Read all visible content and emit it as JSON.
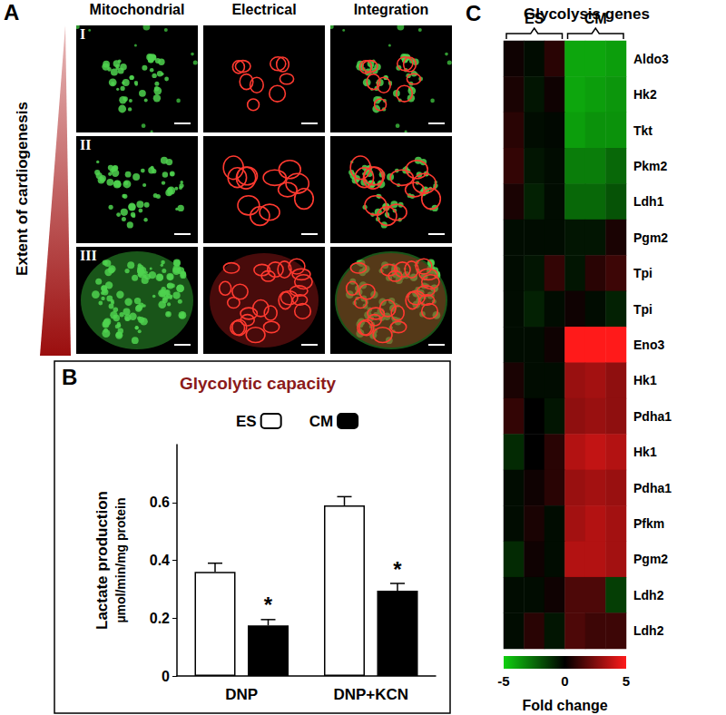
{
  "panel_a": {
    "label": "A",
    "columns": [
      "Mitochondrial",
      "Electrical",
      "Integration"
    ],
    "rows": [
      "I",
      "II",
      "III"
    ],
    "axis_label": "Extent of cardiogenesis"
  },
  "chart_data": [
    {
      "panel_label": "B",
      "type": "bar",
      "title": "Glycolytic capacity",
      "y_label": [
        "Lactate production",
        "µmol/min/mg protein"
      ],
      "categories": [
        "DNP",
        "DNP+KCN"
      ],
      "series": [
        {
          "name": "ES",
          "color": "#ffffff",
          "values": [
            0.36,
            0.59
          ],
          "errors": [
            0.03,
            0.03
          ]
        },
        {
          "name": "CM",
          "color": "#000000",
          "values": [
            0.175,
            0.295
          ],
          "errors": [
            0.02,
            0.025
          ]
        }
      ],
      "ylim": [
        0,
        0.8
      ],
      "yticks": [
        0,
        0.2,
        0.4,
        0.6
      ],
      "legend": "top",
      "annotations": [
        {
          "text": "*",
          "category": "DNP",
          "series": "CM"
        },
        {
          "text": "*",
          "category": "DNP+KCN",
          "series": "CM"
        }
      ]
    },
    {
      "panel_label": "C",
      "type": "heatmap",
      "title": "Glycolysis genes",
      "categories": [
        null,
        null,
        null,
        null,
        null,
        null
      ],
      "column_groups": [
        {
          "label": "ES",
          "columns": [
            0,
            1,
            2
          ]
        },
        {
          "label": "CM",
          "columns": [
            3,
            4,
            5
          ]
        }
      ],
      "rows": [
        "Aldo3",
        "Hk2",
        "Tkt",
        "Pkm2",
        "Ldh1",
        "Pgm2",
        "Tpi",
        "Tpi",
        "Eno3",
        "Hk1",
        "Pdha1",
        "Hk1",
        "Pdha1",
        "Pfkm",
        "Pgm2",
        "Ldh2",
        "Ldh2"
      ],
      "cells": [
        [
          0.3,
          -0.3,
          0.8,
          -4,
          -4,
          -3.8
        ],
        [
          0.5,
          -0.5,
          0.3,
          -4,
          -3.8,
          -3.6
        ],
        [
          0.8,
          -0.3,
          -0.2,
          -3.8,
          -3.5,
          -3.5
        ],
        [
          1,
          -0.5,
          -0.3,
          -3,
          -3,
          -2.5
        ],
        [
          0.5,
          -0.8,
          -0.3,
          -2.5,
          -2.5,
          -2
        ],
        [
          -0.3,
          -0.3,
          -0.3,
          -0.5,
          -0.5,
          0.5
        ],
        [
          -0.3,
          -0.5,
          1,
          -0.5,
          0.8,
          1.2
        ],
        [
          -0.3,
          -0.8,
          -0.3,
          0.3,
          -0.3,
          -0.8
        ],
        [
          -0.3,
          -0.3,
          0.3,
          5,
          5,
          5
        ],
        [
          0.5,
          -0.3,
          -0.3,
          3,
          3.2,
          2.8
        ],
        [
          1,
          0,
          -0.5,
          2.8,
          3,
          2.8
        ],
        [
          -1,
          0,
          0.8,
          3.5,
          3.8,
          3.5
        ],
        [
          -0.3,
          0.3,
          0.8,
          3,
          3.2,
          3
        ],
        [
          -0.3,
          0.5,
          -0.3,
          3.2,
          3.5,
          3.2
        ],
        [
          -1,
          0.3,
          -0.3,
          3.5,
          3.5,
          3.2
        ],
        [
          -0.3,
          -0.3,
          0.3,
          1.5,
          1.5,
          -1.5
        ],
        [
          -0.3,
          0.8,
          -0.5,
          1.5,
          1.2,
          1.2
        ]
      ],
      "color_range": [
        -5,
        5
      ],
      "color_ticks": [
        -5,
        0,
        5
      ],
      "color_label": "Fold change",
      "color_scale": [
        "#10d010",
        "#000000",
        "#ff1a1a"
      ]
    }
  ]
}
